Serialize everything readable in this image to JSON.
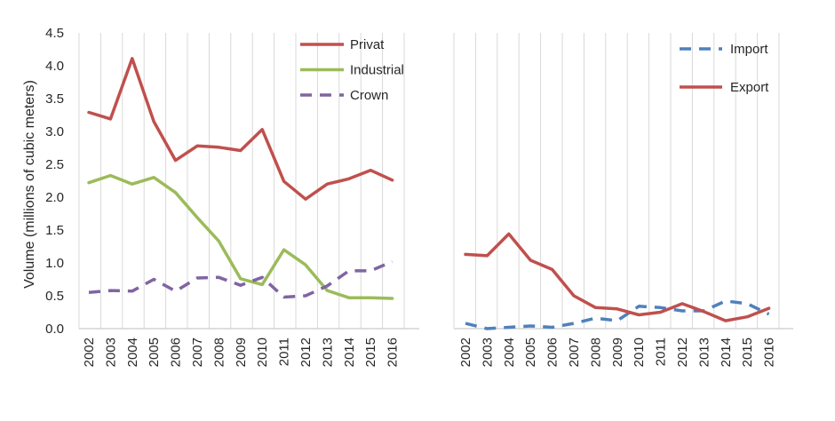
{
  "chart_data": [
    {
      "type": "line",
      "ylabel": "Volume (millions of cubic meters)",
      "ylim": [
        0,
        4.5
      ],
      "yticks": [
        "0.0",
        "0.5",
        "1.0",
        "1.5",
        "2.0",
        "2.5",
        "3.0",
        "3.5",
        "4.0",
        "4.5"
      ],
      "x": [
        "2002",
        "2003",
        "2004",
        "2005",
        "2006",
        "2007",
        "2008",
        "2009",
        "2010",
        "2011",
        "2012",
        "2013",
        "2014",
        "2015",
        "2016"
      ],
      "grid": "vertical",
      "legend_position": "top-right",
      "series": [
        {
          "name": "Privat",
          "color": "#c0504d",
          "style": "solid",
          "values": [
            3.29,
            3.19,
            4.11,
            3.15,
            2.56,
            2.78,
            2.76,
            2.71,
            3.03,
            2.24,
            1.97,
            2.2,
            2.28,
            2.41,
            2.26
          ]
        },
        {
          "name": "Industrial",
          "color": "#9bbb59",
          "style": "solid",
          "values": [
            2.22,
            2.33,
            2.2,
            2.3,
            2.07,
            1.69,
            1.33,
            0.76,
            0.67,
            1.2,
            0.97,
            0.58,
            0.47,
            0.47,
            0.46
          ]
        },
        {
          "name": "Crown",
          "color": "#8064a2",
          "style": "dashed",
          "values": [
            0.55,
            0.58,
            0.57,
            0.75,
            0.57,
            0.77,
            0.78,
            0.66,
            0.78,
            0.48,
            0.5,
            0.65,
            0.88,
            0.88,
            1.02
          ]
        }
      ]
    },
    {
      "type": "line",
      "ylim": [
        0,
        4.5
      ],
      "x": [
        "2002",
        "2003",
        "2004",
        "2005",
        "2006",
        "2007",
        "2008",
        "2009",
        "2010",
        "2011",
        "2012",
        "2013",
        "2014",
        "2015",
        "2016"
      ],
      "grid": "vertical",
      "legend_position": "top-right",
      "series": [
        {
          "name": "Import",
          "color": "#4f81bd",
          "style": "dashed",
          "values": [
            0.08,
            0.0,
            0.02,
            0.04,
            0.02,
            0.08,
            0.16,
            0.12,
            0.34,
            0.32,
            0.27,
            0.27,
            0.42,
            0.38,
            0.22
          ]
        },
        {
          "name": "Export",
          "color": "#c0504d",
          "style": "solid",
          "values": [
            1.13,
            1.11,
            1.44,
            1.04,
            0.9,
            0.5,
            0.32,
            0.3,
            0.21,
            0.25,
            0.38,
            0.26,
            0.12,
            0.18,
            0.31
          ]
        }
      ]
    }
  ]
}
